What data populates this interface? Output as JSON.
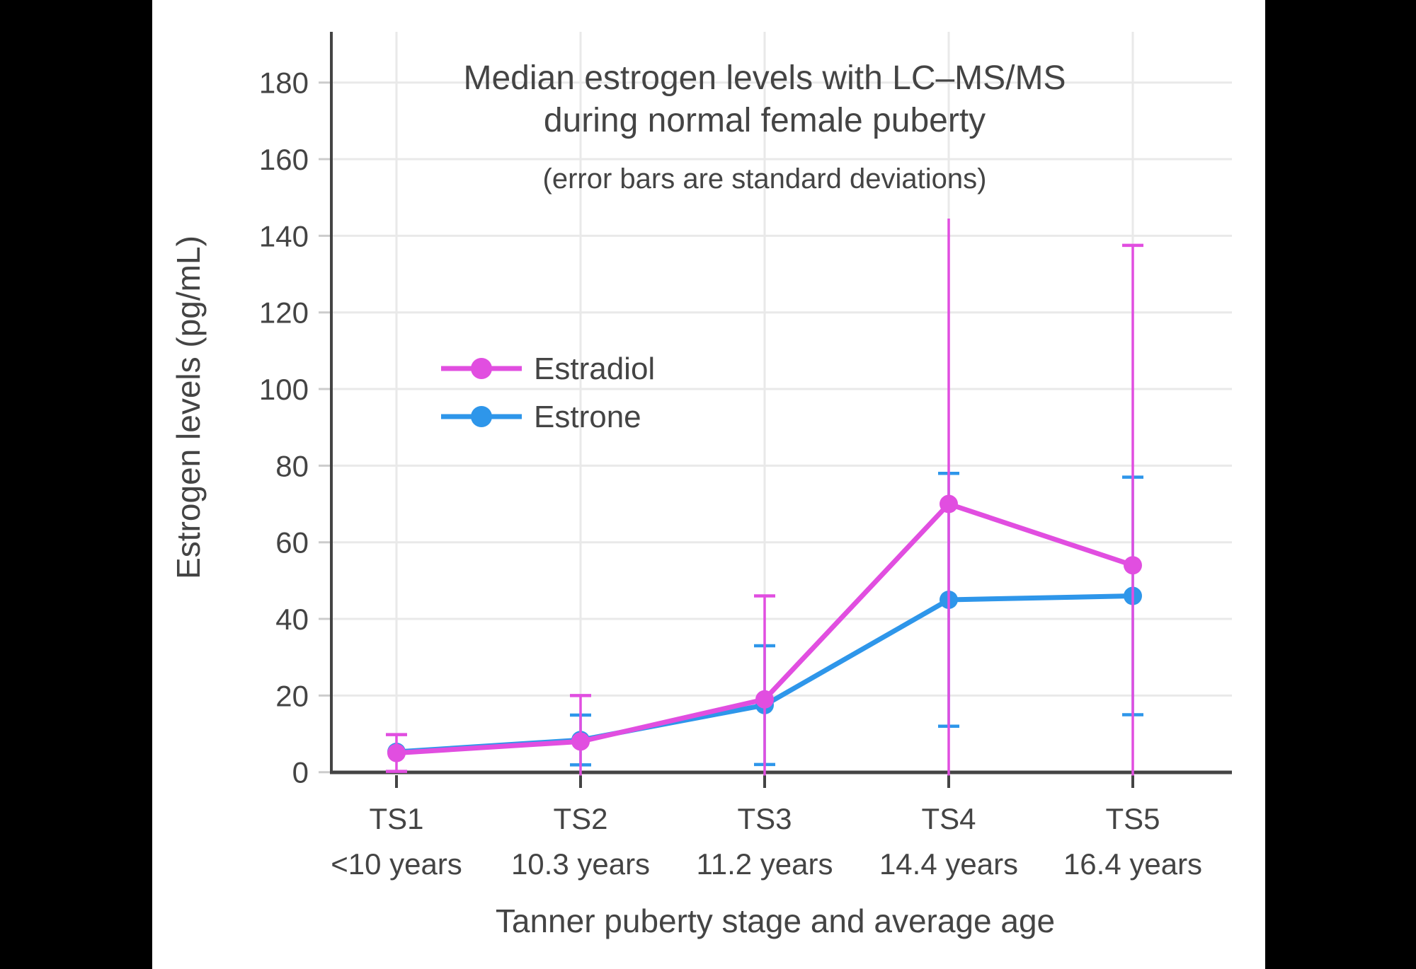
{
  "window": {
    "letterbox_color": "#000000",
    "figure_background": "#ffffff"
  },
  "styles": {
    "text_color": "#444444",
    "axis_color": "#444444",
    "grid_color": "#e9e9e9",
    "y_tick_color": "#cccccc",
    "estradiol_color": "#e14ee0",
    "estrone_color": "#2e96ea"
  },
  "chart_data": {
    "type": "line",
    "title_line1": "Median estrogen levels with LC–MS/MS",
    "title_line2": "during normal female puberty",
    "subtitle": "(error bars are standard deviations)",
    "xlabel": "Tanner puberty stage and average age",
    "ylabel": "Estrogen levels (pg/mL)",
    "categories": [
      "TS1",
      "TS2",
      "TS3",
      "TS4",
      "TS5"
    ],
    "category_ages": [
      "<10 years",
      "10.3 years",
      "11.2 years",
      "14.4 years",
      "16.4 years"
    ],
    "y_ticks": [
      0,
      20,
      40,
      60,
      80,
      100,
      120,
      140,
      160,
      180
    ],
    "ylim": [
      -1,
      193
    ],
    "grid": true,
    "legend_position": "inside-upper-left",
    "error_bars": "standard deviations",
    "series": [
      {
        "name": "Estradiol",
        "color": "#e14ee0",
        "values": [
          5,
          8,
          19,
          70,
          54
        ],
        "sd": [
          4.8,
          12,
          27,
          74.5,
          83.5
        ],
        "top_caps": [
          true,
          true,
          true,
          false,
          true
        ]
      },
      {
        "name": "Estrone",
        "color": "#2e96ea",
        "values": [
          5.3,
          8.4,
          17.5,
          45,
          46
        ],
        "sd": [
          null,
          6.5,
          15.5,
          33,
          31
        ],
        "top_caps": [
          true,
          true,
          true,
          true,
          true
        ]
      }
    ]
  }
}
